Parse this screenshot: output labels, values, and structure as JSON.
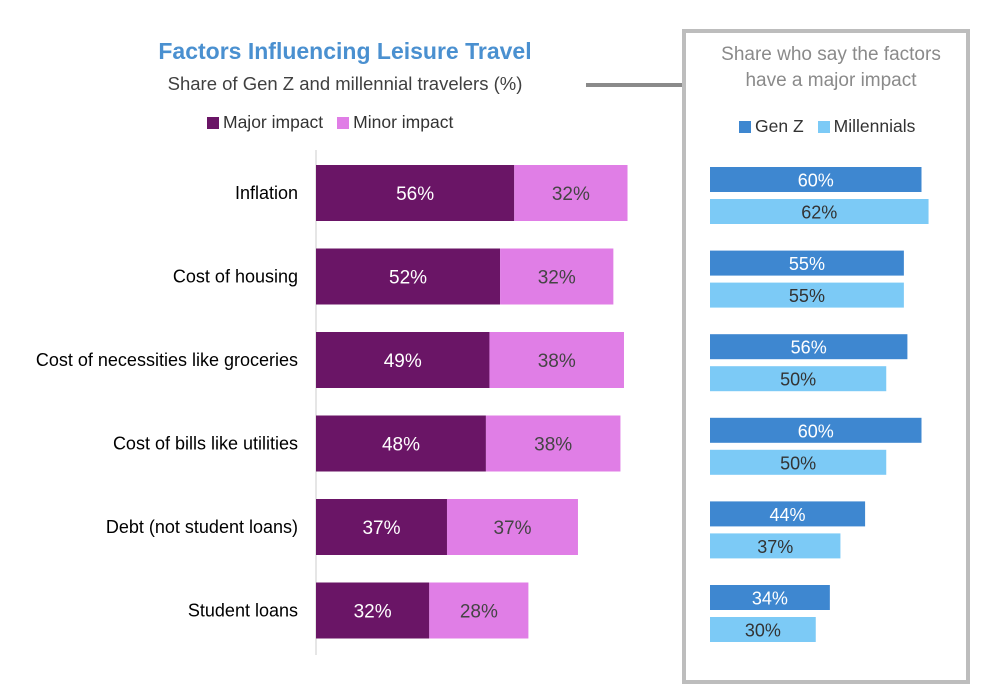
{
  "colors": {
    "title": "#4a90d0",
    "major": "#6a1566",
    "minor": "#e07ee6",
    "genz": "#3e87d0",
    "millennials": "#7ccaf6",
    "axis": "#cccccc",
    "panel_border": "#bdbdbd"
  },
  "chart_data": [
    {
      "type": "bar",
      "orientation": "horizontal",
      "stacked": true,
      "title": "Factors Influencing Leisure Travel",
      "subtitle": "Share of Gen Z and millennial travelers (%)",
      "categories": [
        "Inflation",
        "Cost of housing",
        "Cost of necessities like groceries",
        "Cost of bills like utilities",
        "Debt (not student loans)",
        "Student loans"
      ],
      "series": [
        {
          "name": "Major impact",
          "values": [
            56,
            52,
            49,
            48,
            37,
            32
          ],
          "labels": [
            "56%",
            "52%",
            "49%",
            "48%",
            "37%",
            "32%"
          ]
        },
        {
          "name": "Minor impact",
          "values": [
            32,
            32,
            38,
            38,
            37,
            28
          ],
          "labels": [
            "32%",
            "32%",
            "38%",
            "38%",
            "37%",
            "28%"
          ]
        }
      ],
      "xlim": [
        0,
        100
      ],
      "legend": "top",
      "grid": false
    },
    {
      "type": "bar",
      "orientation": "horizontal",
      "stacked": false,
      "title": "Share who say the factors have a major impact",
      "title_lines": [
        "Share who say the factors",
        "have a major impact"
      ],
      "categories": [
        "Inflation",
        "Cost of housing",
        "Cost of necessities like groceries",
        "Cost of bills like utilities",
        "Debt (not student loans)",
        "Student loans"
      ],
      "series": [
        {
          "name": "Gen Z",
          "values": [
            60,
            55,
            56,
            60,
            44,
            34
          ],
          "labels": [
            "60%",
            "55%",
            "56%",
            "60%",
            "44%",
            "34%"
          ]
        },
        {
          "name": "Millennials",
          "values": [
            62,
            55,
            50,
            50,
            37,
            30
          ],
          "labels": [
            "62%",
            "55%",
            "50%",
            "50%",
            "37%",
            "30%"
          ]
        }
      ],
      "xlim": [
        0,
        70
      ],
      "legend": "top",
      "grid": false
    }
  ]
}
